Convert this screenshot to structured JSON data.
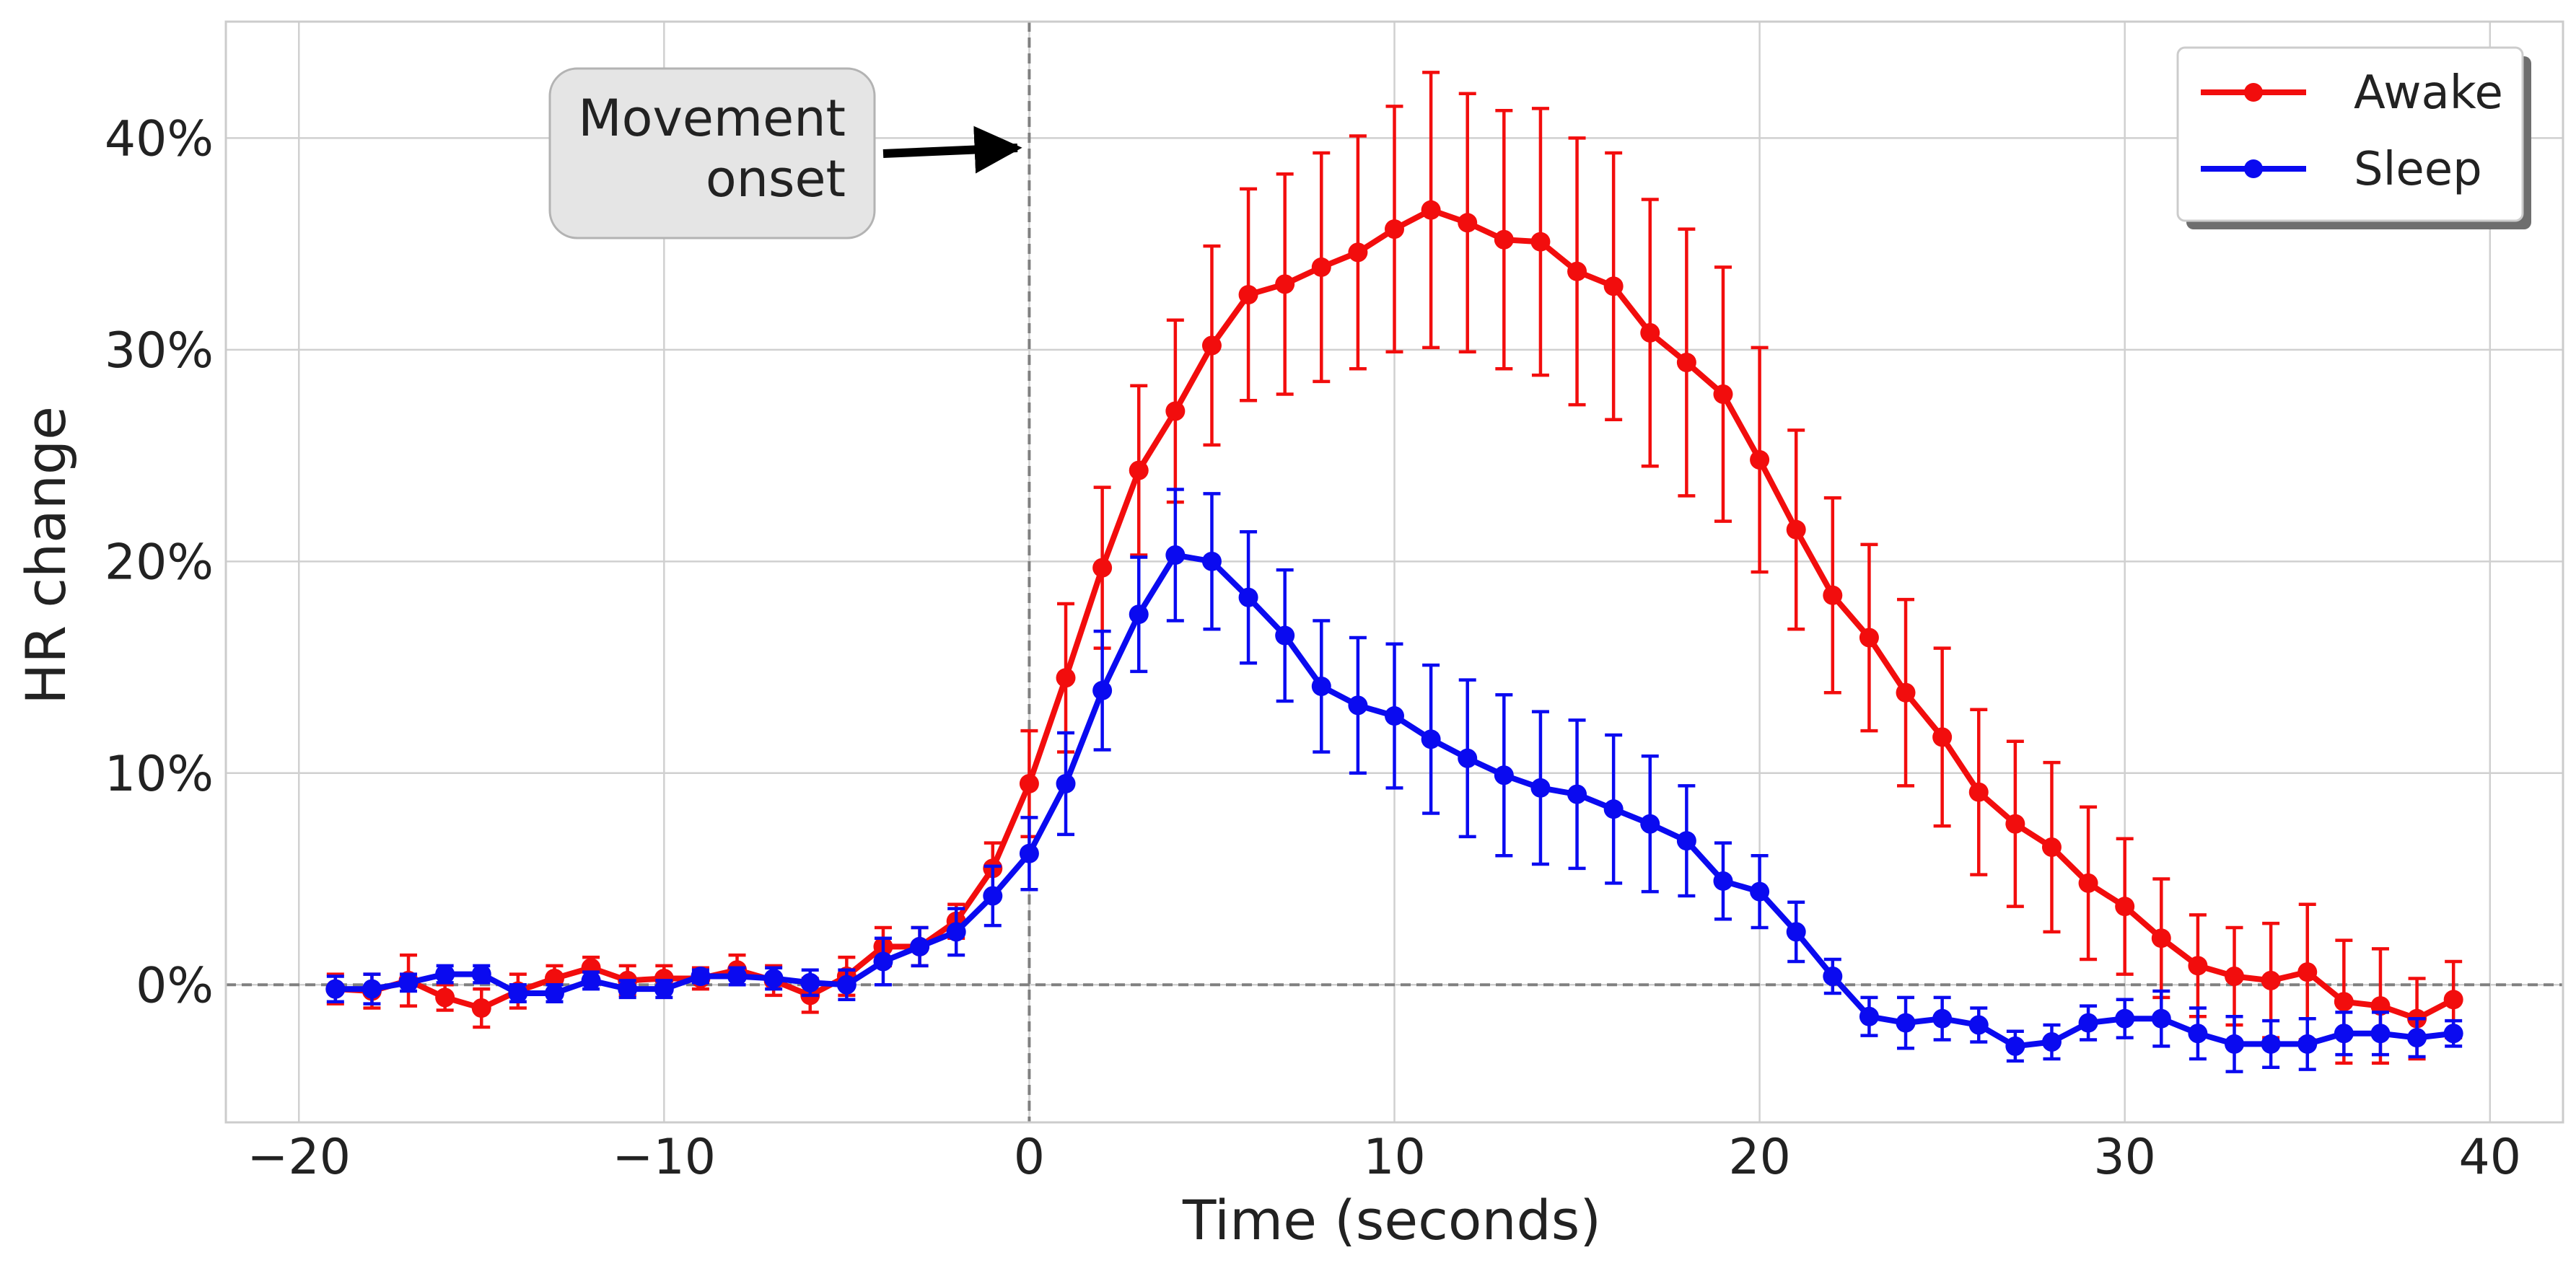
{
  "chart_data": {
    "type": "line",
    "title": "",
    "xlabel": "Time (seconds)",
    "ylabel": "HR change",
    "xlim": [
      -22,
      42
    ],
    "ylim": [
      -6.5,
      45.5
    ],
    "xticks": [
      -20,
      -10,
      0,
      10,
      20,
      30,
      40
    ],
    "xtick_labels": [
      "−20",
      "−10",
      "0",
      "10",
      "20",
      "30",
      "40"
    ],
    "yticks": [
      0,
      10,
      20,
      30,
      40
    ],
    "ytick_labels": [
      "0%",
      "10%",
      "20%",
      "30%",
      "40%"
    ],
    "grid": true,
    "legend_position": "top-right",
    "reference_lines": {
      "x": 0,
      "y": 0
    },
    "annotation": {
      "lines": [
        "Movement",
        "onset"
      ],
      "points_to": [
        0,
        39.3
      ]
    },
    "x": [
      -19,
      -18,
      -17,
      -16,
      -15,
      -14,
      -13,
      -12,
      -11,
      -10,
      -9,
      -8,
      -7,
      -6,
      -5,
      -4,
      -3,
      -2,
      -1,
      0,
      1,
      2,
      3,
      4,
      5,
      6,
      7,
      8,
      9,
      10,
      11,
      12,
      13,
      14,
      15,
      16,
      17,
      18,
      19,
      20,
      21,
      22,
      23,
      24,
      25,
      26,
      27,
      28,
      29,
      30,
      31,
      32,
      33,
      34,
      35,
      36,
      37,
      38,
      39
    ],
    "series": [
      {
        "name": "Awake",
        "color": "#f20d0d",
        "values": [
          -0.2,
          -0.3,
          0.2,
          -0.6,
          -1.1,
          -0.3,
          0.3,
          0.8,
          0.2,
          0.3,
          0.3,
          0.7,
          0.2,
          -0.5,
          0.4,
          1.8,
          1.8,
          3.0,
          5.5,
          9.5,
          14.5,
          19.7,
          24.3,
          27.1,
          30.2,
          32.6,
          33.1,
          33.9,
          34.6,
          35.7,
          36.6,
          36.0,
          35.2,
          35.1,
          33.7,
          33.0,
          30.8,
          29.4,
          27.9,
          24.8,
          21.5,
          18.4,
          16.4,
          13.8,
          11.7,
          9.1,
          7.6,
          6.5,
          4.8,
          3.7,
          2.2,
          0.9,
          0.4,
          0.2,
          0.6,
          -0.8,
          -1.0,
          -1.6,
          -0.7
        ],
        "errors": [
          0.7,
          0.8,
          1.2,
          0.6,
          0.9,
          0.8,
          0.6,
          0.5,
          0.7,
          0.6,
          0.5,
          0.7,
          0.7,
          0.8,
          0.9,
          0.9,
          0.9,
          0.8,
          1.2,
          2.5,
          3.5,
          3.8,
          4.0,
          4.3,
          4.7,
          5.0,
          5.2,
          5.4,
          5.5,
          5.8,
          6.5,
          6.1,
          6.1,
          6.3,
          6.3,
          6.3,
          6.3,
          6.3,
          6.0,
          5.3,
          4.7,
          4.6,
          4.4,
          4.4,
          4.2,
          3.9,
          3.9,
          4.0,
          3.6,
          3.2,
          2.8,
          2.4,
          2.3,
          2.7,
          3.2,
          2.9,
          2.7,
          1.9,
          1.8
        ]
      },
      {
        "name": "Sleep",
        "color": "#0a0af0",
        "values": [
          -0.2,
          -0.2,
          0.1,
          0.5,
          0.5,
          -0.4,
          -0.4,
          0.2,
          -0.2,
          -0.2,
          0.4,
          0.4,
          0.3,
          0.1,
          0.0,
          1.1,
          1.8,
          2.5,
          4.2,
          6.2,
          9.5,
          13.9,
          17.5,
          20.3,
          20.0,
          18.3,
          16.5,
          14.1,
          13.2,
          12.7,
          11.6,
          10.7,
          9.9,
          9.3,
          9.0,
          8.3,
          7.6,
          6.8,
          4.9,
          4.4,
          2.5,
          0.4,
          -1.5,
          -1.8,
          -1.6,
          -1.9,
          -2.9,
          -2.7,
          -1.8,
          -1.6,
          -1.6,
          -2.3,
          -2.8,
          -2.8,
          -2.8,
          -2.3,
          -2.3,
          -2.5,
          -2.3
        ],
        "errors": [
          0.6,
          0.7,
          0.4,
          0.4,
          0.4,
          0.4,
          0.4,
          0.4,
          0.4,
          0.4,
          0.3,
          0.4,
          0.5,
          0.6,
          0.7,
          1.1,
          0.9,
          1.1,
          1.4,
          1.7,
          2.4,
          2.8,
          2.7,
          3.1,
          3.2,
          3.1,
          3.1,
          3.1,
          3.2,
          3.4,
          3.5,
          3.7,
          3.8,
          3.6,
          3.5,
          3.5,
          3.2,
          2.6,
          1.8,
          1.7,
          1.4,
          0.8,
          0.9,
          1.2,
          1.0,
          0.8,
          0.7,
          0.8,
          0.8,
          0.9,
          1.3,
          1.2,
          1.3,
          1.1,
          1.2,
          1.0,
          1.0,
          0.9,
          0.6
        ]
      }
    ]
  }
}
